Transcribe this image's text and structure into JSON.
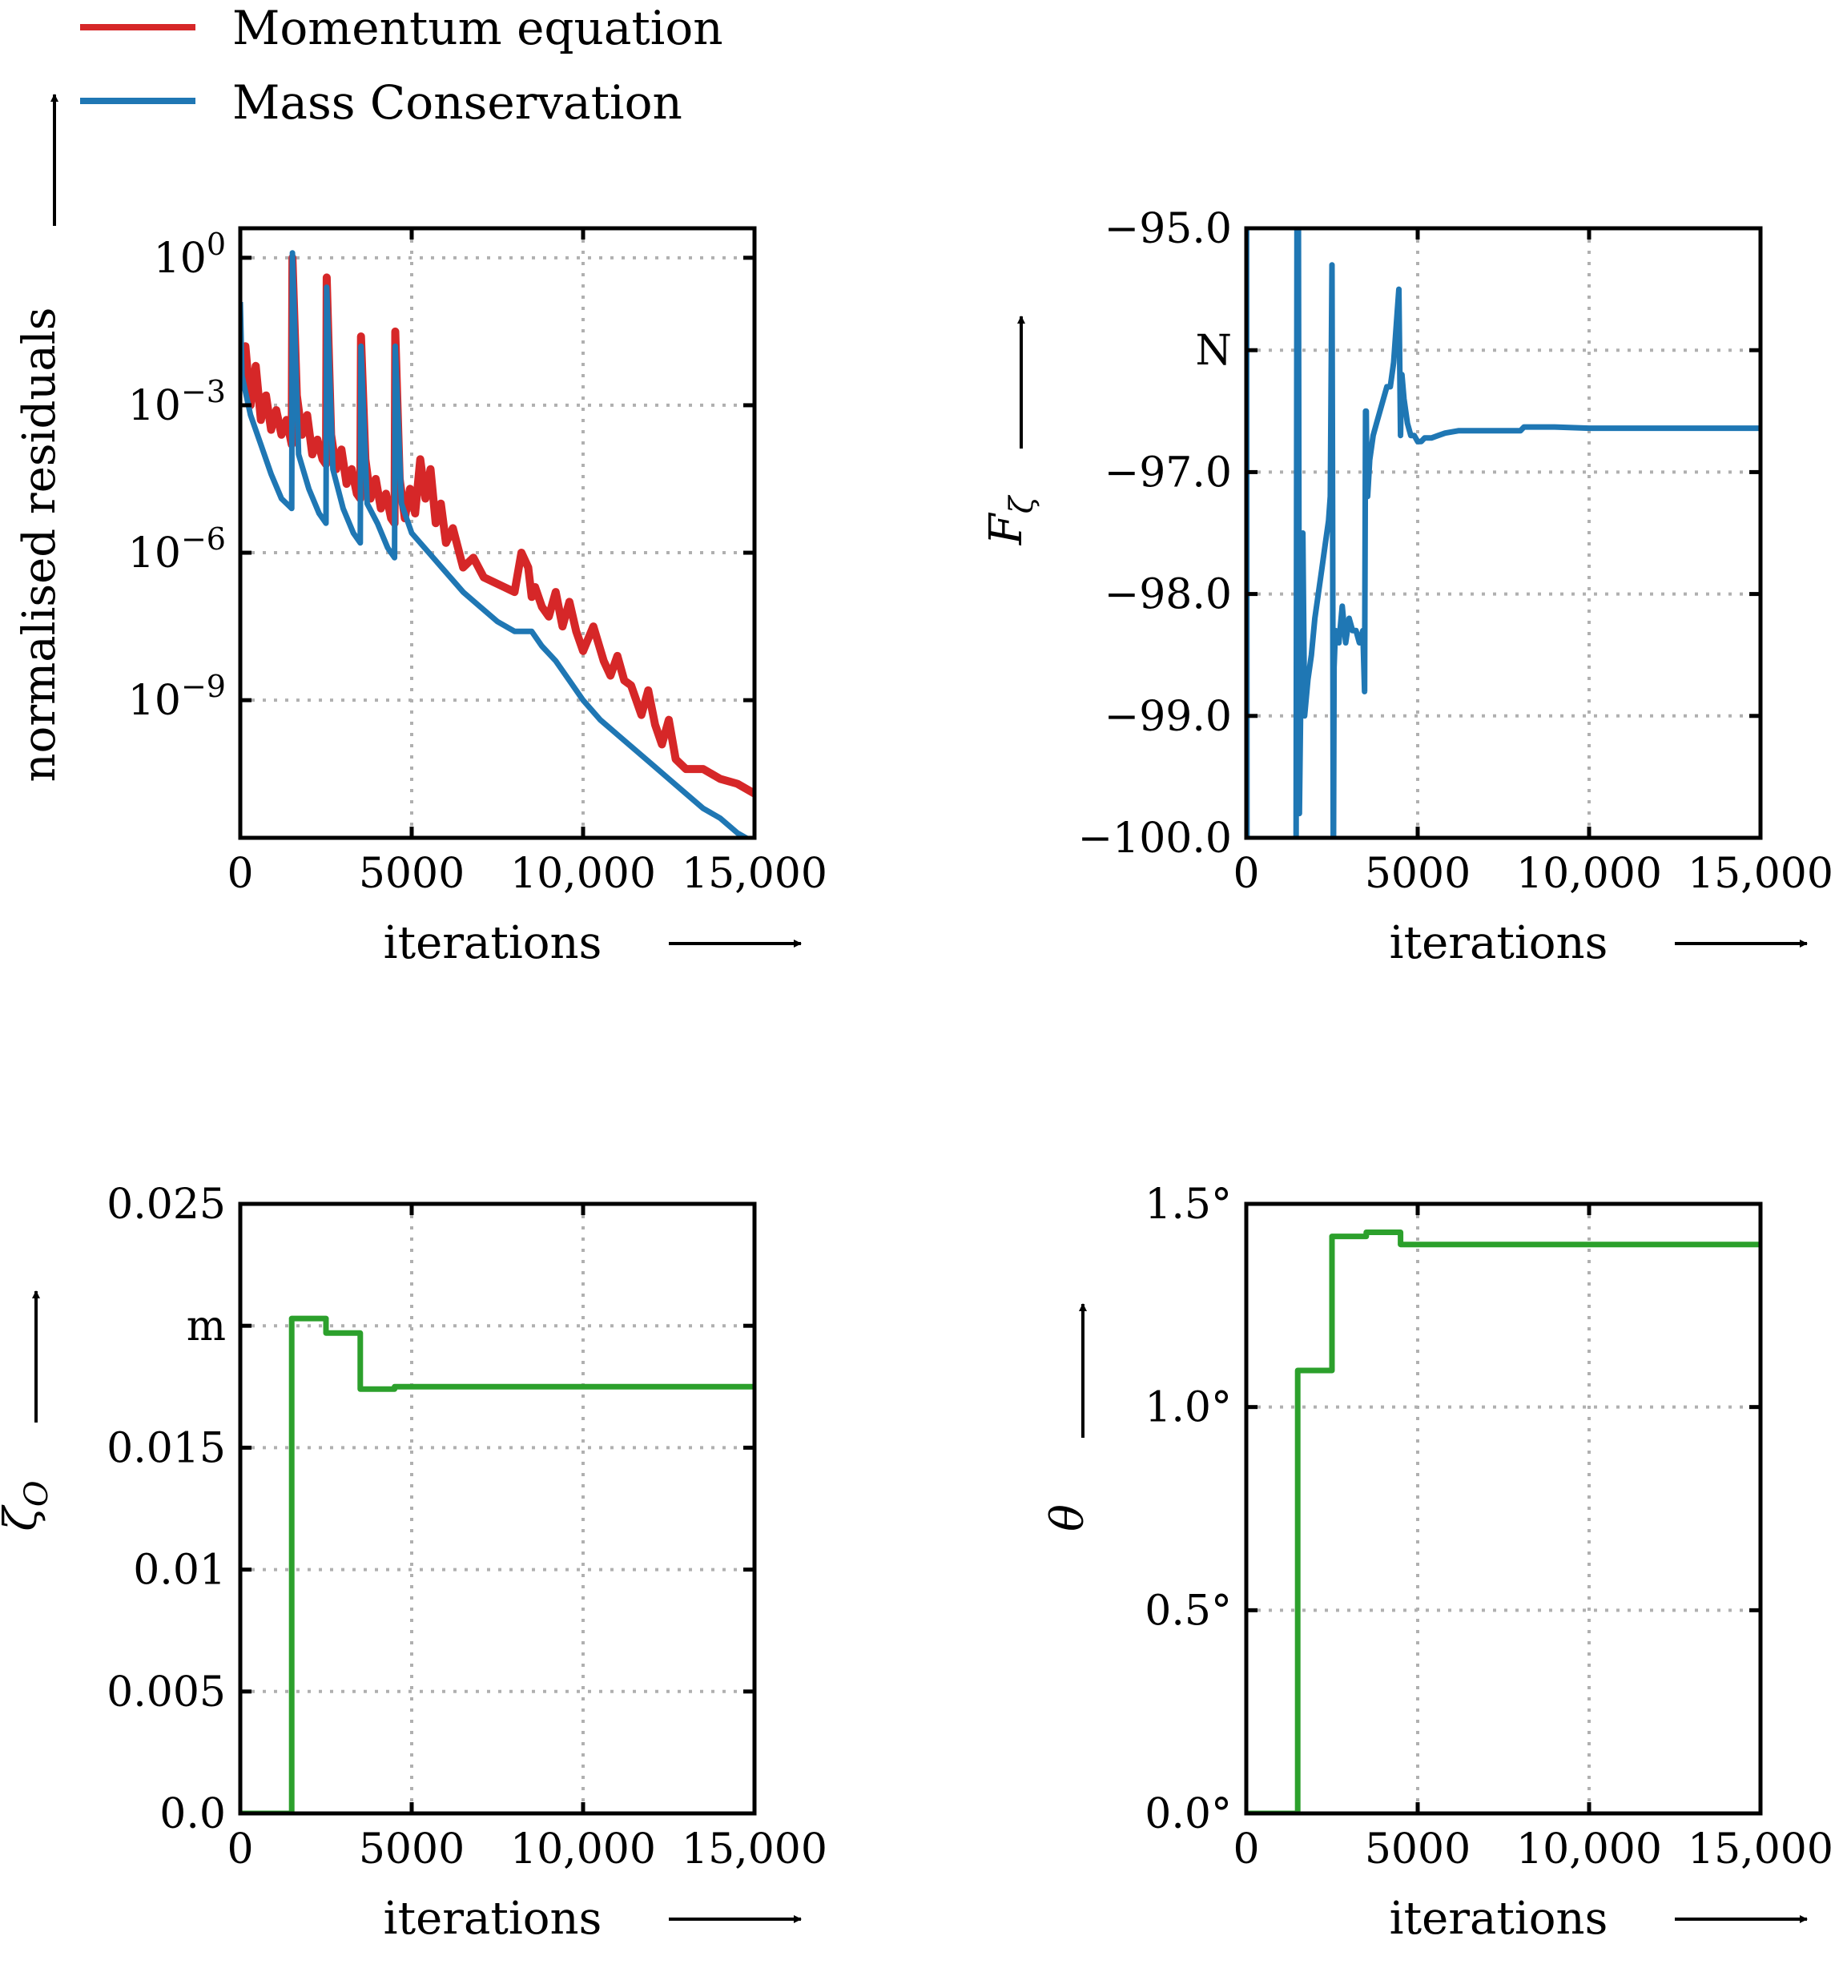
{
  "legend": [
    {
      "label": "Momentum equation",
      "color": "#d62728"
    },
    {
      "label": "Mass Conservation",
      "color": "#1f77b4"
    }
  ],
  "colors": {
    "momentum": "#d62728",
    "mass": "#1f77b4",
    "green": "#2ca02c",
    "grid": "#b0b0b0"
  },
  "chart_data": [
    {
      "id": "residuals",
      "type": "line",
      "ylabel": "normalised residuals",
      "xlabel": "iterations",
      "xlim": [
        0,
        15000
      ],
      "ylim_log10": [
        -11.8,
        0.6
      ],
      "yscale": "log",
      "grid": true,
      "xticks": [
        {
          "v": 0,
          "label": "0"
        },
        {
          "v": 5000,
          "label": "5000"
        },
        {
          "v": 10000,
          "label": "10,000"
        },
        {
          "v": 15000,
          "label": "15,000"
        }
      ],
      "yticks": [
        {
          "v": 0,
          "base": "10",
          "exp": "0"
        },
        {
          "v": -3,
          "base": "10",
          "exp": "−3"
        },
        {
          "v": -6,
          "base": "10",
          "exp": "−6"
        },
        {
          "v": -9,
          "base": "10",
          "exp": "−9"
        }
      ],
      "series": [
        {
          "name": "Momentum equation",
          "color": "#d62728",
          "x": [
            0,
            150,
            300,
            450,
            600,
            750,
            900,
            1050,
            1200,
            1350,
            1500,
            1520,
            1650,
            1800,
            1950,
            2100,
            2250,
            2400,
            2500,
            2520,
            2650,
            2800,
            2950,
            3100,
            3250,
            3400,
            3500,
            3520,
            3650,
            3800,
            3950,
            4100,
            4250,
            4400,
            4500,
            4520,
            4650,
            4800,
            4950,
            5100,
            5250,
            5400,
            5550,
            5700,
            5850,
            6000,
            6200,
            6500,
            6800,
            7100,
            7400,
            7700,
            8000,
            8200,
            8400,
            8500,
            8600,
            8800,
            9000,
            9200,
            9400,
            9600,
            9800,
            10000,
            10300,
            10600,
            10800,
            11000,
            11200,
            11400,
            11700,
            11900,
            12100,
            12300,
            12500,
            12700,
            13000,
            13500,
            14000,
            14500,
            15000
          ],
          "log10": [
            -2.3,
            -1.8,
            -3.0,
            -2.2,
            -3.3,
            -2.8,
            -3.5,
            -3.1,
            -3.6,
            -3.3,
            -3.8,
            0.0,
            -2.8,
            -3.6,
            -3.2,
            -4.0,
            -3.7,
            -4.1,
            -4.2,
            -0.4,
            -3.6,
            -4.3,
            -3.9,
            -4.6,
            -4.3,
            -4.8,
            -4.9,
            -1.6,
            -4.1,
            -4.9,
            -4.5,
            -5.1,
            -4.8,
            -5.3,
            -5.4,
            -1.5,
            -4.5,
            -5.3,
            -4.7,
            -5.2,
            -4.1,
            -4.9,
            -4.3,
            -5.4,
            -5.0,
            -5.8,
            -5.5,
            -6.3,
            -6.1,
            -6.5,
            -6.6,
            -6.7,
            -6.8,
            -6.0,
            -6.3,
            -6.9,
            -6.7,
            -7.1,
            -7.3,
            -6.8,
            -7.5,
            -7.0,
            -7.6,
            -8.0,
            -7.5,
            -8.2,
            -8.5,
            -8.1,
            -8.6,
            -8.7,
            -9.3,
            -8.8,
            -9.5,
            -9.9,
            -9.4,
            -10.2,
            -10.4,
            -10.4,
            -10.6,
            -10.7,
            -10.9
          ]
        },
        {
          "name": "Mass Conservation",
          "color": "#1f77b4",
          "x": [
            0,
            50,
            300,
            600,
            900,
            1200,
            1500,
            1520,
            1700,
            2000,
            2300,
            2500,
            2520,
            2700,
            3000,
            3300,
            3500,
            3520,
            3700,
            4000,
            4300,
            4500,
            4520,
            4700,
            5000,
            5500,
            6000,
            6500,
            7000,
            7500,
            8000,
            8500,
            8800,
            9200,
            9600,
            10000,
            10500,
            11000,
            11500,
            12000,
            12500,
            13000,
            13500,
            14000,
            14500,
            15000
          ],
          "log10": [
            -0.9,
            -2.4,
            -3.2,
            -3.8,
            -4.4,
            -4.9,
            -5.1,
            0.1,
            -4.0,
            -4.7,
            -5.2,
            -5.4,
            -0.6,
            -4.3,
            -5.1,
            -5.6,
            -5.8,
            -1.8,
            -5.0,
            -5.4,
            -5.9,
            -6.1,
            -1.8,
            -5.0,
            -5.6,
            -6.0,
            -6.4,
            -6.8,
            -7.1,
            -7.4,
            -7.6,
            -7.6,
            -7.9,
            -8.2,
            -8.6,
            -9.0,
            -9.4,
            -9.7,
            -10.0,
            -10.3,
            -10.6,
            -10.9,
            -11.2,
            -11.4,
            -11.7,
            -11.9
          ]
        }
      ]
    },
    {
      "id": "force",
      "type": "line",
      "ylabel": "F",
      "ylabel_sub": "ζ",
      "unit": "N",
      "xlabel": "iterations",
      "xlim": [
        0,
        15000
      ],
      "ylim": [
        -100.0,
        -95.0
      ],
      "grid": true,
      "xticks": [
        {
          "v": 0,
          "label": "0"
        },
        {
          "v": 5000,
          "label": "5000"
        },
        {
          "v": 10000,
          "label": "10,000"
        },
        {
          "v": 15000,
          "label": "15,000"
        }
      ],
      "yticks": [
        {
          "v": -95.0,
          "label": "−95.0"
        },
        {
          "v": -97.0,
          "label": "−97.0"
        },
        {
          "v": -98.0,
          "label": "−98.0"
        },
        {
          "v": -99.0,
          "label": "−99.0"
        },
        {
          "v": -100.0,
          "label": "−100.0"
        }
      ],
      "unit_at": -96.0,
      "series": [
        {
          "color": "#1f77b4",
          "x": [
            0,
            10,
            20,
            1400,
            1450,
            1480,
            1500,
            1520,
            1550,
            1600,
            1650,
            1700,
            1800,
            1900,
            2000,
            2100,
            2200,
            2300,
            2400,
            2450,
            2500,
            2520,
            2540,
            2560,
            2600,
            2700,
            2800,
            2900,
            3000,
            3100,
            3200,
            3300,
            3400,
            3450,
            3480,
            3500,
            3520,
            3540,
            3600,
            3700,
            3800,
            3900,
            4000,
            4100,
            4200,
            4300,
            4400,
            4450,
            4500,
            4520,
            4540,
            4600,
            4700,
            4800,
            4900,
            5000,
            5100,
            5200,
            5400,
            5600,
            5800,
            6000,
            6200,
            6500,
            7000,
            7500,
            8000,
            8100,
            8200,
            9000,
            10000,
            11000,
            12000,
            13000,
            14000,
            15000
          ],
          "y": [
            -100.5,
            -95.0,
            -100.5,
            -100.5,
            -100.5,
            -95.0,
            -95.0,
            -95.0,
            -99.8,
            -98.6,
            -97.5,
            -99.0,
            -98.7,
            -98.5,
            -98.2,
            -98.0,
            -97.8,
            -97.6,
            -97.4,
            -97.2,
            -95.3,
            -97.7,
            -100.5,
            -98.6,
            -98.3,
            -98.4,
            -98.1,
            -98.4,
            -98.2,
            -98.3,
            -98.3,
            -98.4,
            -98.3,
            -98.8,
            -96.5,
            -96.5,
            -97.2,
            -97.2,
            -96.9,
            -96.7,
            -96.6,
            -96.5,
            -96.4,
            -96.3,
            -96.3,
            -96.1,
            -95.7,
            -95.5,
            -96.7,
            -96.3,
            -96.2,
            -96.4,
            -96.6,
            -96.7,
            -96.7,
            -96.75,
            -96.75,
            -96.72,
            -96.72,
            -96.7,
            -96.68,
            -96.67,
            -96.66,
            -96.66,
            -96.66,
            -96.66,
            -96.66,
            -96.63,
            -96.63,
            -96.63,
            -96.64,
            -96.64,
            -96.64,
            -96.64,
            -96.64,
            -96.64
          ]
        }
      ]
    },
    {
      "id": "zeta",
      "type": "line",
      "ylabel": "ζ",
      "ylabel_sub": "O",
      "unit": "m",
      "xlabel": "iterations",
      "xlim": [
        0,
        15000
      ],
      "ylim": [
        0.0,
        0.025
      ],
      "grid": true,
      "xticks": [
        {
          "v": 0,
          "label": "0"
        },
        {
          "v": 5000,
          "label": "5000"
        },
        {
          "v": 10000,
          "label": "10,000"
        },
        {
          "v": 15000,
          "label": "15,000"
        }
      ],
      "yticks": [
        {
          "v": 0.025,
          "label": "0.025"
        },
        {
          "v": 0.015,
          "label": "0.015"
        },
        {
          "v": 0.01,
          "label": "0.01"
        },
        {
          "v": 0.005,
          "label": "0.005"
        },
        {
          "v": 0.0,
          "label": "0.0"
        }
      ],
      "unit_at": 0.02,
      "series": [
        {
          "color": "#2ca02c",
          "x": [
            0,
            1500,
            1500,
            2500,
            2500,
            3500,
            3500,
            4500,
            4500,
            15000
          ],
          "y": [
            0.0,
            0.0,
            0.0203,
            0.0203,
            0.0197,
            0.0197,
            0.0174,
            0.0174,
            0.0175,
            0.0175
          ]
        }
      ]
    },
    {
      "id": "theta",
      "type": "line",
      "ylabel": "θ",
      "xlabel": "iterations",
      "xlim": [
        0,
        15000
      ],
      "ylim": [
        0.0,
        1.5
      ],
      "grid": true,
      "xticks": [
        {
          "v": 0,
          "label": "0"
        },
        {
          "v": 5000,
          "label": "5000"
        },
        {
          "v": 10000,
          "label": "10,000"
        },
        {
          "v": 15000,
          "label": "15,000"
        }
      ],
      "yticks": [
        {
          "v": 1.5,
          "label": "1.5°"
        },
        {
          "v": 1.0,
          "label": "1.0°"
        },
        {
          "v": 0.5,
          "label": "0.5°"
        },
        {
          "v": 0.0,
          "label": "0.0°"
        }
      ],
      "series": [
        {
          "color": "#2ca02c",
          "x": [
            0,
            1500,
            1500,
            2500,
            2500,
            3500,
            3500,
            4500,
            4500,
            15000
          ],
          "y": [
            0.0,
            0.0,
            1.09,
            1.09,
            1.42,
            1.42,
            1.43,
            1.43,
            1.4,
            1.4
          ]
        }
      ]
    }
  ]
}
